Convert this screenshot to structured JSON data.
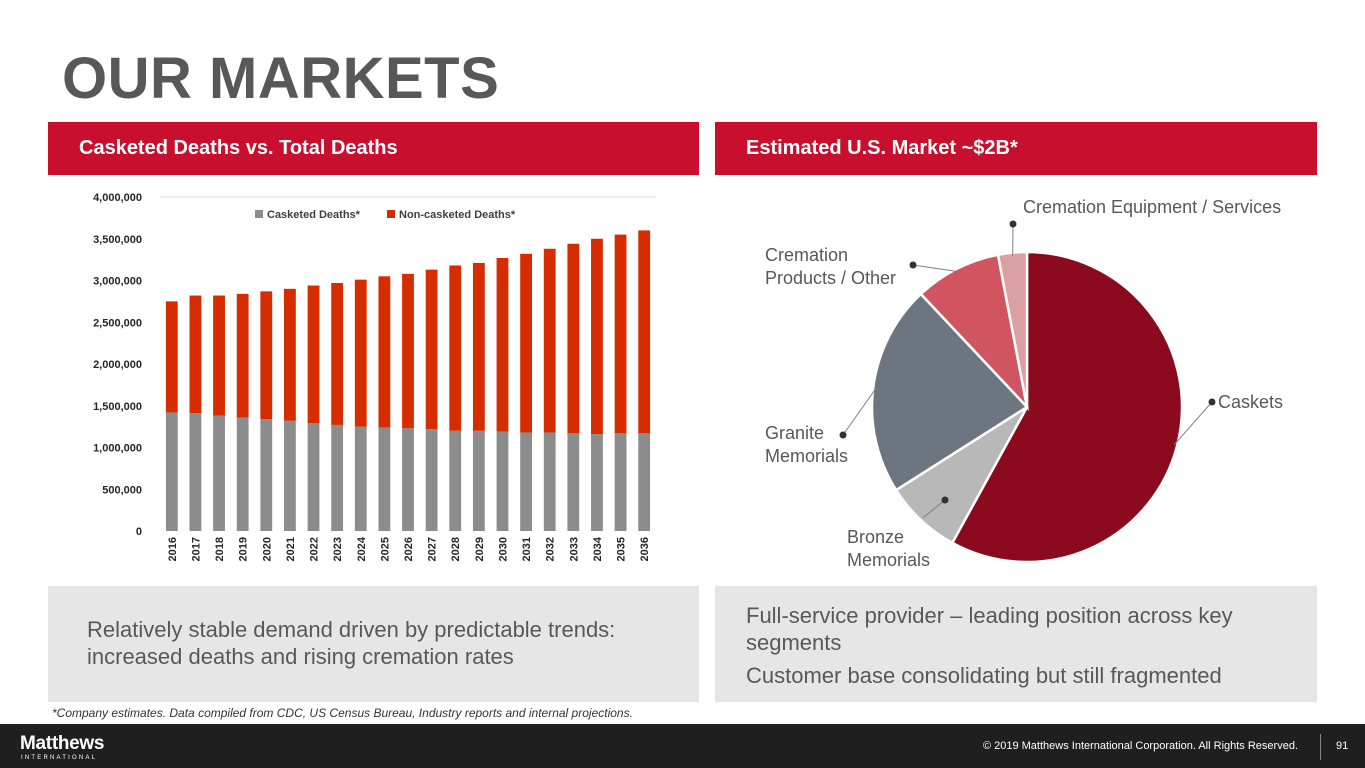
{
  "title": "OUR MARKETS",
  "left_panel": {
    "header": "Casketed Deaths vs. Total Deaths",
    "text": "Relatively stable demand driven by predictable trends: increased deaths and rising cremation rates"
  },
  "right_panel": {
    "header": "Estimated U.S. Market ~$2B*",
    "bullets": [
      "Full-service provider – leading position across key segments",
      "Customer base consolidating but still fragmented"
    ]
  },
  "footnote": "*Company estimates. Data compiled from CDC, US Census Bureau, Industry reports and internal projections.",
  "footer": {
    "logo": "Matthews",
    "logo_sub": "INTERNATIONAL",
    "copyright": "© 2019 Matthews International Corporation. All Rights Reserved.",
    "page_number": "91"
  },
  "colors": {
    "brand_red": "#c8102e",
    "casketed": "#8c8c8c",
    "non_casketed": "#d62d00",
    "caskets": "#8c0a1e",
    "bronze": "#b8b8b8",
    "granite": "#6d7680",
    "cremation_products": "#d05560",
    "cremation_equipment": "#dba0a4"
  },
  "chart_data": [
    {
      "type": "bar",
      "stacked": true,
      "title": "Casketed Deaths vs. Total Deaths",
      "categories": [
        "2016",
        "2017",
        "2018",
        "2019",
        "2020",
        "2021",
        "2022",
        "2023",
        "2024",
        "2025",
        "2026",
        "2027",
        "2028",
        "2029",
        "2030",
        "2031",
        "2032",
        "2033",
        "2034",
        "2035",
        "2036"
      ],
      "series": [
        {
          "name": "Casketed Deaths*",
          "values": [
            1420000,
            1410000,
            1380000,
            1360000,
            1340000,
            1320000,
            1290000,
            1270000,
            1250000,
            1240000,
            1230000,
            1220000,
            1200000,
            1200000,
            1190000,
            1180000,
            1180000,
            1170000,
            1160000,
            1170000,
            1170000
          ]
        },
        {
          "name": "Non-casketed Deaths*",
          "values": [
            1330000,
            1410000,
            1440000,
            1480000,
            1530000,
            1580000,
            1650000,
            1700000,
            1760000,
            1810000,
            1850000,
            1910000,
            1980000,
            2010000,
            2080000,
            2140000,
            2200000,
            2270000,
            2340000,
            2380000,
            2430000
          ]
        }
      ],
      "ylim": [
        0,
        4000000
      ],
      "yticks": [
        "0",
        "500,000",
        "1,000,000",
        "1,500,000",
        "2,000,000",
        "2,500,000",
        "3,000,000",
        "3,500,000",
        "4,000,000"
      ],
      "legend": "top"
    },
    {
      "type": "pie",
      "title": "Estimated U.S. Market ~$2B*",
      "labels": [
        "Caskets",
        "Bronze Memorials",
        "Granite Memorials",
        "Cremation Products / Other",
        "Cremation Equipment / Services"
      ],
      "values": [
        58,
        8,
        22,
        9,
        3
      ]
    }
  ]
}
